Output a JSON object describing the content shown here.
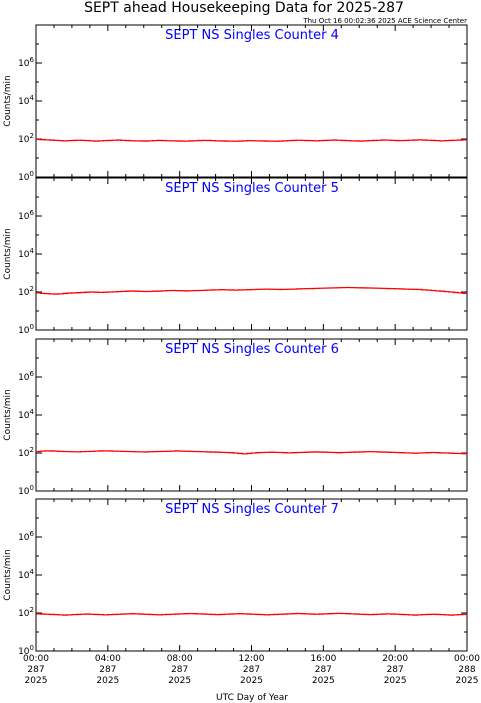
{
  "title": "SEPT ahead Housekeeping Data for 2025-287",
  "timestamp": "Thu Oct 16 00:02:36 2025 ACE Science Center",
  "chart_data": [
    {
      "type": "line",
      "title": "SEPT NS Singles Counter 4",
      "ylabel": "Counts/min",
      "yscale": "log",
      "ylim": [
        1,
        100000000
      ],
      "yticks": [
        {
          "base": "10",
          "exp": "0"
        },
        {
          "base": "10",
          "exp": "2"
        },
        {
          "base": "10",
          "exp": "4"
        },
        {
          "base": "10",
          "exp": "6"
        }
      ],
      "xlim": [
        0,
        24
      ],
      "series": [
        {
          "color": "#ff0000",
          "values": [
            95,
            92,
            90,
            88,
            85,
            82,
            80,
            82,
            84,
            86,
            85,
            83,
            80,
            78,
            80,
            82,
            84,
            86,
            88,
            85,
            83,
            81,
            80,
            79,
            78,
            80,
            82,
            84,
            83,
            81,
            80,
            79,
            78,
            77,
            79,
            81,
            83,
            85,
            84,
            82,
            80,
            79,
            78,
            77,
            76,
            78,
            80,
            82,
            81,
            80,
            79,
            78,
            77,
            76,
            78,
            80,
            82,
            84,
            86,
            85,
            83,
            82,
            80,
            82,
            84,
            86,
            88,
            86,
            84,
            82,
            80,
            79,
            78,
            80,
            82,
            84,
            86,
            88,
            87,
            85,
            83,
            82,
            84,
            86,
            88,
            90,
            88,
            86,
            84,
            82,
            80,
            82,
            84,
            86,
            88,
            90
          ]
        }
      ]
    },
    {
      "type": "line",
      "title": "SEPT NS Singles Counter 5",
      "ylabel": "Counts/min",
      "yscale": "log",
      "ylim": [
        1,
        100000000
      ],
      "yticks": [
        {
          "base": "10",
          "exp": "0"
        },
        {
          "base": "10",
          "exp": "2"
        },
        {
          "base": "10",
          "exp": "4"
        },
        {
          "base": "10",
          "exp": "6"
        }
      ],
      "xlim": [
        0,
        24
      ],
      "series": [
        {
          "color": "#ff0000",
          "values": [
            90,
            85,
            82,
            80,
            78,
            80,
            84,
            88,
            90,
            92,
            95,
            98,
            100,
            98,
            96,
            98,
            100,
            102,
            105,
            108,
            110,
            112,
            110,
            108,
            106,
            108,
            110,
            112,
            115,
            118,
            120,
            118,
            116,
            114,
            116,
            118,
            120,
            122,
            125,
            128,
            130,
            132,
            130,
            128,
            126,
            128,
            130,
            132,
            135,
            138,
            140,
            142,
            140,
            138,
            136,
            138,
            140,
            142,
            145,
            148,
            150,
            152,
            155,
            158,
            160,
            162,
            165,
            168,
            170,
            172,
            170,
            168,
            166,
            164,
            162,
            160,
            158,
            155,
            152,
            150,
            148,
            145,
            142,
            140,
            138,
            135,
            130,
            125,
            120,
            115,
            110,
            105,
            100,
            95,
            90,
            85
          ]
        }
      ]
    },
    {
      "type": "line",
      "title": "SEPT NS Singles Counter 6",
      "ylabel": "Counts/min",
      "yscale": "log",
      "ylim": [
        1,
        100000000
      ],
      "yticks": [
        {
          "base": "10",
          "exp": "0"
        },
        {
          "base": "10",
          "exp": "2"
        },
        {
          "base": "10",
          "exp": "4"
        },
        {
          "base": "10",
          "exp": "6"
        }
      ],
      "xlim": [
        0,
        24
      ],
      "series": [
        {
          "color": "#ff0000",
          "values": [
            120,
            125,
            130,
            128,
            125,
            122,
            120,
            118,
            116,
            115,
            118,
            120,
            122,
            125,
            128,
            130,
            128,
            126,
            124,
            122,
            120,
            118,
            116,
            115,
            114,
            116,
            118,
            120,
            122,
            124,
            126,
            128,
            126,
            124,
            122,
            120,
            118,
            116,
            114,
            112,
            110,
            108,
            106,
            104,
            100,
            95,
            90,
            95,
            100,
            104,
            106,
            108,
            110,
            108,
            106,
            104,
            102,
            104,
            106,
            108,
            110,
            112,
            114,
            112,
            110,
            108,
            106,
            104,
            106,
            108,
            110,
            112,
            114,
            116,
            118,
            116,
            114,
            112,
            110,
            108,
            106,
            104,
            102,
            100,
            98,
            100,
            102,
            104,
            106,
            104,
            102,
            100,
            98,
            96,
            94,
            92
          ]
        }
      ]
    },
    {
      "type": "line",
      "title": "SEPT NS Singles Counter 7",
      "ylabel": "Counts/min",
      "yscale": "log",
      "ylim": [
        1,
        100000000
      ],
      "yticks": [
        {
          "base": "10",
          "exp": "0"
        },
        {
          "base": "10",
          "exp": "2"
        },
        {
          "base": "10",
          "exp": "4"
        },
        {
          "base": "10",
          "exp": "6"
        }
      ],
      "xlim": [
        0,
        24
      ],
      "series": [
        {
          "color": "#ff0000",
          "values": [
            90,
            88,
            86,
            84,
            82,
            80,
            78,
            80,
            82,
            84,
            86,
            88,
            86,
            84,
            82,
            80,
            82,
            84,
            86,
            88,
            90,
            92,
            90,
            88,
            86,
            84,
            82,
            80,
            82,
            84,
            86,
            88,
            90,
            92,
            94,
            92,
            90,
            88,
            86,
            84,
            82,
            84,
            86,
            88,
            90,
            92,
            90,
            88,
            86,
            84,
            82,
            80,
            82,
            84,
            86,
            88,
            90,
            92,
            94,
            92,
            90,
            88,
            86,
            88,
            90,
            92,
            94,
            96,
            94,
            92,
            90,
            88,
            86,
            84,
            82,
            84,
            86,
            88,
            90,
            88,
            86,
            84,
            82,
            80,
            78,
            80,
            82,
            84,
            86,
            84,
            82,
            80,
            78,
            80,
            82,
            84
          ]
        }
      ]
    }
  ],
  "x_axis": {
    "label": "UTC Day of Year",
    "ticks": [
      {
        "hour": 0,
        "time": "00:00",
        "day": "287",
        "year": "2025"
      },
      {
        "hour": 4,
        "time": "04:00",
        "day": "287",
        "year": "2025"
      },
      {
        "hour": 8,
        "time": "08:00",
        "day": "287",
        "year": "2025"
      },
      {
        "hour": 12,
        "time": "12:00",
        "day": "287",
        "year": "2025"
      },
      {
        "hour": 16,
        "time": "16:00",
        "day": "287",
        "year": "2025"
      },
      {
        "hour": 20,
        "time": "20:00",
        "day": "287",
        "year": "2025"
      },
      {
        "hour": 24,
        "time": "00:00",
        "day": "288",
        "year": "2025"
      }
    ],
    "minor_tick_hours": 1
  },
  "colors": {
    "series": "#ff0000",
    "panel_title": "#0000ff",
    "frame": "#000000",
    "background": "#ffffff"
  }
}
